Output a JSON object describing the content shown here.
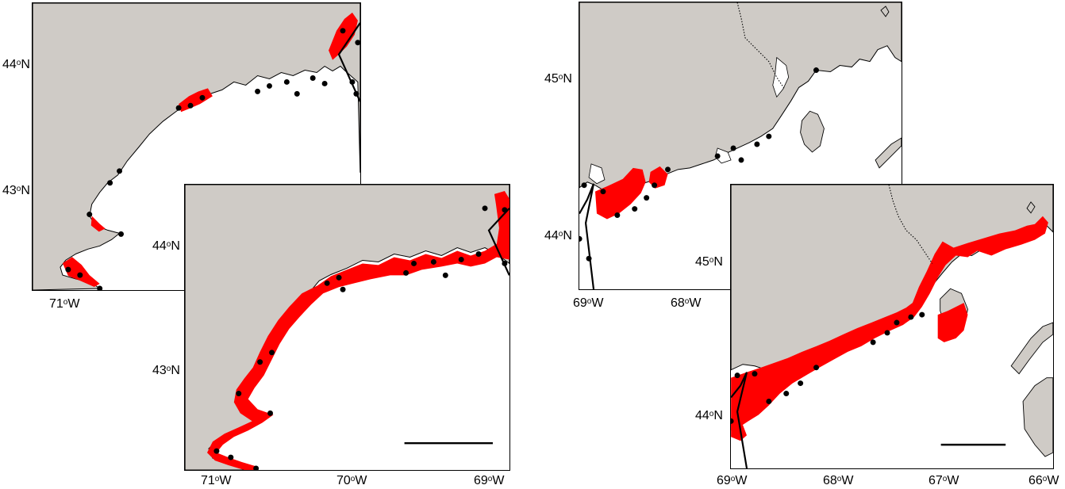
{
  "degree_symbol": "o",
  "maps": [
    {
      "id": "west-small",
      "lat_labels": [
        {
          "deg": "44",
          "hemi": "N"
        },
        {
          "deg": "43",
          "hemi": "N"
        }
      ],
      "lon_labels": [
        {
          "deg": "71",
          "hemi": "W"
        }
      ]
    },
    {
      "id": "west-large",
      "lat_labels": [
        {
          "deg": "44",
          "hemi": "N"
        },
        {
          "deg": "43",
          "hemi": "N"
        }
      ],
      "lon_labels": [
        {
          "deg": "71",
          "hemi": "W"
        },
        {
          "deg": "70",
          "hemi": "W"
        },
        {
          "deg": "69",
          "hemi": "W"
        }
      ],
      "has_scale_bar": true
    },
    {
      "id": "east-small",
      "lat_labels": [
        {
          "deg": "45",
          "hemi": "N"
        },
        {
          "deg": "44",
          "hemi": "N"
        }
      ],
      "lon_labels": [
        {
          "deg": "69",
          "hemi": "W"
        },
        {
          "deg": "68",
          "hemi": "W"
        }
      ]
    },
    {
      "id": "east-large",
      "lat_labels": [
        {
          "deg": "45",
          "hemi": "N"
        },
        {
          "deg": "44",
          "hemi": "N"
        }
      ],
      "lon_labels": [
        {
          "deg": "69",
          "hemi": "W"
        },
        {
          "deg": "68",
          "hemi": "W"
        },
        {
          "deg": "67",
          "hemi": "W"
        },
        {
          "deg": "66",
          "hemi": "W"
        }
      ],
      "has_scale_bar": true
    }
  ],
  "colors": {
    "land": "#cfcbc6",
    "highlight": "#ff0000",
    "stations": "#000000",
    "water": "#ffffff"
  }
}
